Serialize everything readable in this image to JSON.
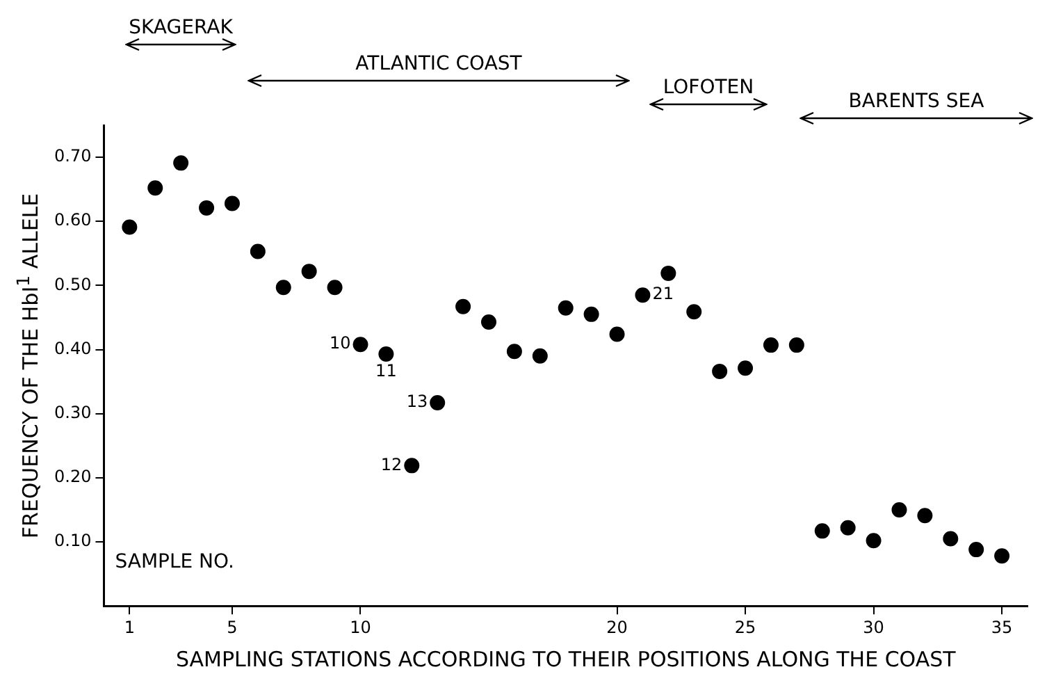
{
  "chart_data": {
    "type": "scatter",
    "xlabel": "SAMPLING STATIONS ACCORDING TO THEIR POSITIONS ALONG THE COAST",
    "ylabel": "FREQUENCY OF THE HbI$^{1}$ ALLELE",
    "annotations": [
      "SAMPLE NO.",
      "SKAGERAK",
      "ATLANTIC COAST",
      "LOFOTEN",
      "BARENTS SEA",
      {
        "text": "10",
        "x": 10,
        "y": 0.408
      },
      {
        "text": "11",
        "x": 11,
        "y": 0.393
      },
      {
        "text": "12",
        "x": 12,
        "y": 0.219
      },
      {
        "text": "13",
        "x": 13,
        "y": 0.317
      },
      {
        "text": "21",
        "x": 21,
        "y": 0.485
      }
    ],
    "xlim": [
      0,
      36
    ],
    "ylim": [
      0,
      0.75
    ],
    "xticks": [
      1,
      5,
      10,
      20,
      25,
      30,
      35
    ],
    "yticks": [
      {
        "value": 0.1,
        "label": "0.10"
      },
      {
        "value": 0.2,
        "label": "0.20"
      },
      {
        "value": 0.3,
        "label": "0.30"
      },
      {
        "value": 0.4,
        "label": "0.40"
      },
      {
        "value": 0.5,
        "label": "0.50"
      },
      {
        "value": 0.6,
        "label": "0.60"
      },
      {
        "value": 0.7,
        "label": "0.70"
      }
    ],
    "grid": false,
    "legend": false,
    "marker": "circle",
    "series": [
      {
        "color": "#000000",
        "x": [
          1,
          2,
          3,
          4,
          5,
          6,
          7,
          8,
          9,
          10,
          11,
          12,
          13,
          14,
          15,
          16,
          17,
          18,
          19,
          20,
          21,
          22,
          23,
          24,
          25,
          26,
          27,
          28,
          29,
          30,
          31,
          32,
          33,
          34,
          35
        ],
        "values": [
          0.591,
          0.652,
          0.691,
          0.621,
          0.628,
          0.553,
          0.497,
          0.522,
          0.497,
          0.408,
          0.393,
          0.219,
          0.317,
          0.467,
          0.443,
          0.397,
          0.39,
          0.465,
          0.455,
          0.424,
          0.485,
          0.519,
          0.459,
          0.366,
          0.371,
          0.407,
          0.407,
          0.117,
          0.122,
          0.102,
          0.15,
          0.141,
          0.105,
          0.088,
          0.078
        ]
      }
    ]
  }
}
